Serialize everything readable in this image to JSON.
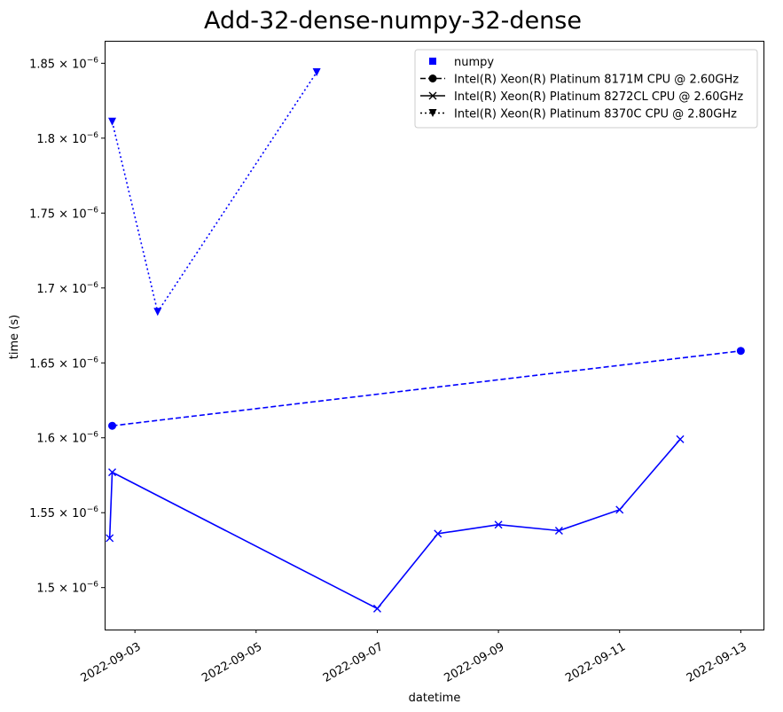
{
  "chart_data": {
    "type": "line",
    "title": "Add-32-dense-numpy-32-dense",
    "xlabel": "datetime",
    "ylabel": "time (s)",
    "xlim": [
      "2022-09-02T12:00",
      "2022-09-13T09:00"
    ],
    "ylim": [
      1.472e-06,
      1.865e-06
    ],
    "x_ticks": [
      "2022-09-03",
      "2022-09-05",
      "2022-09-07",
      "2022-09-09",
      "2022-09-11",
      "2022-09-13"
    ],
    "y_ticks": [
      {
        "value": 1.5e-06,
        "mantissa": "1.5",
        "exponent": "-6"
      },
      {
        "value": 1.55e-06,
        "mantissa": "1.55",
        "exponent": "-6"
      },
      {
        "value": 1.6e-06,
        "mantissa": "1.6",
        "exponent": "-6"
      },
      {
        "value": 1.65e-06,
        "mantissa": "1.65",
        "exponent": "-6"
      },
      {
        "value": 1.7e-06,
        "mantissa": "1.7",
        "exponent": "-6"
      },
      {
        "value": 1.75e-06,
        "mantissa": "1.75",
        "exponent": "-6"
      },
      {
        "value": 1.8e-06,
        "mantissa": "1.8",
        "exponent": "-6"
      },
      {
        "value": 1.85e-06,
        "mantissa": "1.85",
        "exponent": "-6"
      }
    ],
    "grid": false,
    "legend_position": "top-right",
    "color": "#0000ff",
    "legend": [
      {
        "label": "numpy",
        "marker": "square",
        "linestyle": "none"
      },
      {
        "label": "Intel(R) Xeon(R) Platinum 8171M CPU @ 2.60GHz",
        "marker": "circle",
        "linestyle": "dashed"
      },
      {
        "label": "Intel(R) Xeon(R) Platinum 8272CL CPU @ 2.60GHz",
        "marker": "x",
        "linestyle": "solid"
      },
      {
        "label": "Intel(R) Xeon(R) Platinum 8370C CPU @ 2.80GHz",
        "marker": "triangle-down",
        "linestyle": "dotted"
      }
    ],
    "series": [
      {
        "name": "Intel(R) Xeon(R) Platinum 8171M CPU @ 2.60GHz",
        "marker": "circle",
        "linestyle": "dashed",
        "points": [
          {
            "x": "2022-09-02T15:00",
            "y": 1.608e-06
          },
          {
            "x": "2022-09-13T00:00",
            "y": 1.658e-06
          }
        ]
      },
      {
        "name": "Intel(R) Xeon(R) Platinum 8272CL CPU @ 2.60GHz",
        "marker": "x",
        "linestyle": "solid",
        "points": [
          {
            "x": "2022-09-02T14:00",
            "y": 1.533e-06
          },
          {
            "x": "2022-09-02T15:00",
            "y": 1.577e-06
          },
          {
            "x": "2022-09-07T00:00",
            "y": 1.486e-06
          },
          {
            "x": "2022-09-08T00:00",
            "y": 1.536e-06
          },
          {
            "x": "2022-09-09T00:00",
            "y": 1.542e-06
          },
          {
            "x": "2022-09-10T00:00",
            "y": 1.538e-06
          },
          {
            "x": "2022-09-11T00:00",
            "y": 1.552e-06
          },
          {
            "x": "2022-09-12T00:00",
            "y": 1.599e-06
          }
        ]
      },
      {
        "name": "Intel(R) Xeon(R) Platinum 8370C CPU @ 2.80GHz",
        "marker": "triangle-down",
        "linestyle": "dotted",
        "points": [
          {
            "x": "2022-09-02T15:00",
            "y": 1.811e-06
          },
          {
            "x": "2022-09-03T09:00",
            "y": 1.684e-06
          },
          {
            "x": "2022-09-06T00:00",
            "y": 1.844e-06
          }
        ]
      }
    ]
  }
}
